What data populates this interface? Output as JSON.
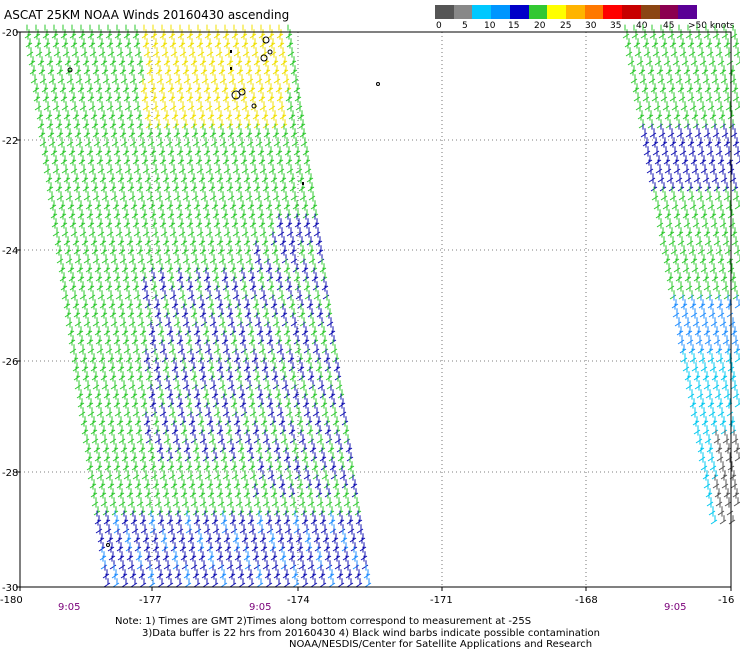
{
  "title": "ASCAT 25KM NOAA Winds 20160430 ascending",
  "legend": {
    "labels": [
      "0",
      "5",
      "10",
      "15",
      "20",
      "25",
      "30",
      "35",
      "40",
      "45",
      ">50 knots"
    ],
    "colors": [
      "#555555",
      "#888888",
      "#00c8ff",
      "#0096ff",
      "#0000c8",
      "#32c832",
      "#ffff00",
      "#ffb400",
      "#ff7800",
      "#ff0000",
      "#c80000",
      "#8b4513",
      "#8b0050",
      "#5a0096"
    ]
  },
  "map": {
    "lat_labels": [
      "-20",
      "-22",
      "-24",
      "-26",
      "-28",
      "-30"
    ],
    "lon_labels": [
      "-180",
      "-177",
      "-174",
      "-171",
      "-168",
      "-16"
    ],
    "time_labels": [
      "9:05",
      "9:05",
      "9:05"
    ],
    "barb_colors": {
      "yellow": "#f0e000",
      "green": "#2ec82e",
      "blue": "#1010b0",
      "lightblue": "#1e8cff",
      "cyan": "#00c8f0",
      "black": "#000000"
    }
  },
  "notes": {
    "line1": "Note: 1) Times are GMT 2)Times along bottom correspond to measurement at -25S",
    "line2": "3)Data buffer is 22 hrs from 20160430 4) Black wind barbs indicate possible contamination",
    "line3": "NOAA/NESDIS/Center for Satellite Applications and Research"
  }
}
